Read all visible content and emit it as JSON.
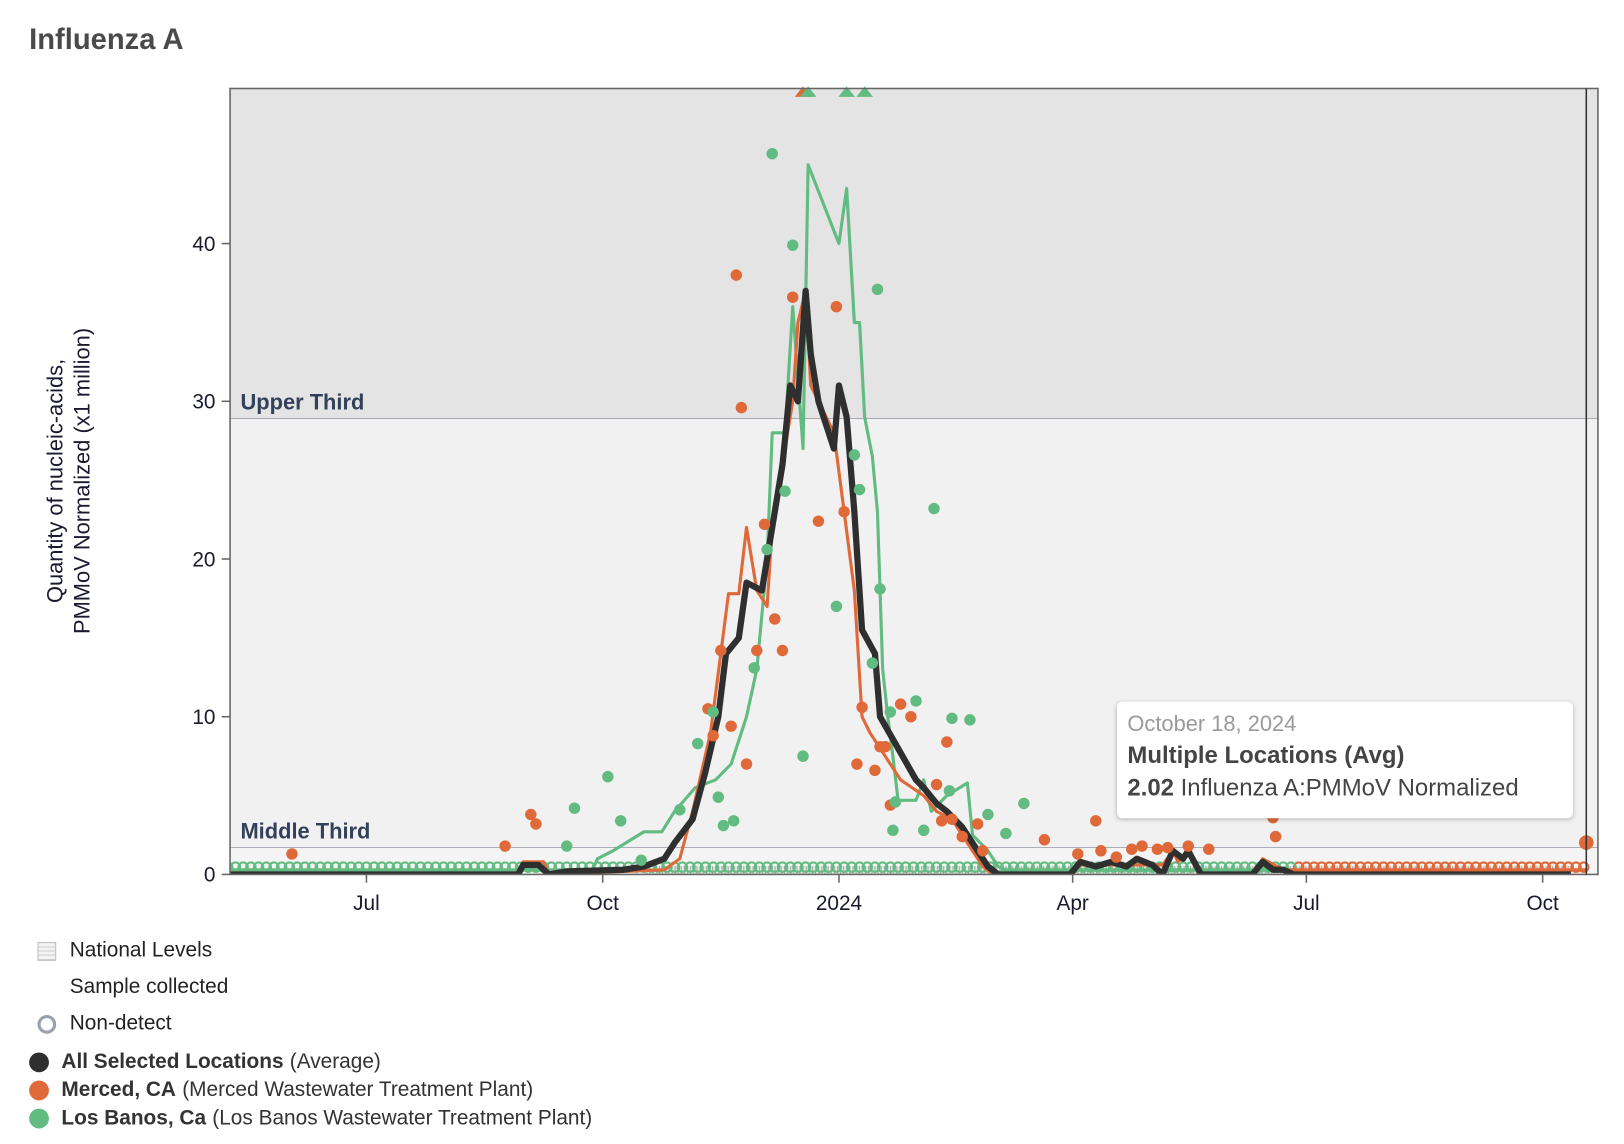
{
  "title": "Influenza A",
  "chart_data": {
    "type": "line",
    "title": "Influenza A",
    "ylabel_lines": [
      "Quantity of nucleic-acids,",
      "PMMoV Normalized (x1 million)"
    ],
    "xlabel": "",
    "x_range": [
      "2023-05-08",
      "2024-10-22"
    ],
    "ylim": [
      0,
      50
    ],
    "y_ticks": [
      0,
      10,
      20,
      30,
      40
    ],
    "x_ticks": [
      {
        "date": "2023-07-01",
        "label": "Jul"
      },
      {
        "date": "2023-10-01",
        "label": "Oct"
      },
      {
        "date": "2024-01-01",
        "label": "2024"
      },
      {
        "date": "2024-04-01",
        "label": "Apr"
      },
      {
        "date": "2024-07-01",
        "label": "Jul"
      },
      {
        "date": "2024-10-01",
        "label": "Oct"
      }
    ],
    "bands": [
      {
        "label": "Upper Third",
        "from": 28.9,
        "to": 50,
        "color": "#e4e4e4"
      },
      {
        "label": "Middle Third",
        "from": 1.7,
        "to": 28.9,
        "color": "#f1f1f1"
      }
    ],
    "national_levels": {
      "label": "National Levels",
      "from_date": "2023-10-17",
      "to_date": "2024-10-12",
      "max": 0.4
    },
    "cursor_date": "2024-10-18",
    "series": [
      {
        "name": "All Selected Locations",
        "detail": "(Average)",
        "color": "#2f2f2f",
        "points": [
          [
            "2023-05-08",
            0
          ],
          [
            "2023-08-29",
            0
          ],
          [
            "2023-08-31",
            0.6
          ],
          [
            "2023-09-06",
            0.6
          ],
          [
            "2023-09-10",
            0
          ],
          [
            "2023-09-17",
            0.2
          ],
          [
            "2023-10-09",
            0.3
          ],
          [
            "2023-10-17",
            0.5
          ],
          [
            "2023-10-25",
            1
          ],
          [
            "2023-10-29",
            2
          ],
          [
            "2023-11-05",
            3.5
          ],
          [
            "2023-11-10",
            6.5
          ],
          [
            "2023-11-15",
            10
          ],
          [
            "2023-11-18",
            14
          ],
          [
            "2023-11-23",
            15
          ],
          [
            "2023-11-26",
            18.5
          ],
          [
            "2023-12-02",
            18
          ],
          [
            "2023-12-06",
            22
          ],
          [
            "2023-12-10",
            26
          ],
          [
            "2023-12-13",
            31
          ],
          [
            "2023-12-16",
            30
          ],
          [
            "2023-12-19",
            37
          ],
          [
            "2023-12-21",
            33
          ],
          [
            "2023-12-24",
            30
          ],
          [
            "2023-12-30",
            27
          ],
          [
            "2024-01-01",
            31
          ],
          [
            "2024-01-04",
            29
          ],
          [
            "2024-01-07",
            23
          ],
          [
            "2024-01-10",
            15.5
          ],
          [
            "2024-01-15",
            14
          ],
          [
            "2024-01-17",
            10
          ],
          [
            "2024-01-24",
            8
          ],
          [
            "2024-01-31",
            6
          ],
          [
            "2024-02-03",
            5.5
          ],
          [
            "2024-02-08",
            4.5
          ],
          [
            "2024-02-12",
            4
          ],
          [
            "2024-02-18",
            3
          ],
          [
            "2024-02-22",
            2
          ],
          [
            "2024-02-28",
            0.5
          ],
          [
            "2024-03-03",
            0
          ],
          [
            "2024-03-31",
            0
          ],
          [
            "2024-04-04",
            0.8
          ],
          [
            "2024-04-10",
            0.5
          ],
          [
            "2024-04-16",
            0.8
          ],
          [
            "2024-04-22",
            0.5
          ],
          [
            "2024-04-26",
            1
          ],
          [
            "2024-05-02",
            0.6
          ],
          [
            "2024-05-06",
            0
          ],
          [
            "2024-05-10",
            1.5
          ],
          [
            "2024-05-14",
            1
          ],
          [
            "2024-05-16",
            1.5
          ],
          [
            "2024-05-21",
            0
          ],
          [
            "2024-06-10",
            0
          ],
          [
            "2024-06-14",
            0.8
          ],
          [
            "2024-06-18",
            0.3
          ],
          [
            "2024-06-22",
            0.3
          ],
          [
            "2024-06-26",
            0
          ],
          [
            "2024-10-12",
            0
          ]
        ]
      },
      {
        "name": "Merced, CA",
        "detail": "(Merced Wastewater Treatment Plant)",
        "color": "#e0693a",
        "points": [
          [
            "2023-05-08",
            0
          ],
          [
            "2023-08-29",
            0
          ],
          [
            "2023-08-31",
            0.8
          ],
          [
            "2023-09-08",
            0.8
          ],
          [
            "2023-09-10",
            0
          ],
          [
            "2023-10-25",
            0.3
          ],
          [
            "2023-10-31",
            1
          ],
          [
            "2023-11-05",
            4
          ],
          [
            "2023-11-12",
            9
          ],
          [
            "2023-11-16",
            14
          ],
          [
            "2023-11-19",
            17.8
          ],
          [
            "2023-11-23",
            17.8
          ],
          [
            "2023-11-26",
            22
          ],
          [
            "2023-11-30",
            18
          ],
          [
            "2023-12-04",
            17
          ],
          [
            "2023-12-06",
            22
          ],
          [
            "2023-12-10",
            26
          ],
          [
            "2023-12-14",
            30
          ],
          [
            "2023-12-16",
            35
          ],
          [
            "2023-12-19",
            37
          ],
          [
            "2023-12-21",
            31
          ],
          [
            "2023-12-30",
            28
          ],
          [
            "2024-01-03",
            23
          ],
          [
            "2024-01-07",
            18
          ],
          [
            "2024-01-10",
            10
          ],
          [
            "2024-01-13",
            9
          ],
          [
            "2024-01-17",
            8
          ],
          [
            "2024-01-25",
            6
          ],
          [
            "2024-02-03",
            5
          ],
          [
            "2024-02-08",
            4
          ],
          [
            "2024-02-14",
            3.5
          ],
          [
            "2024-02-18",
            2.5
          ],
          [
            "2024-02-22",
            1.5
          ],
          [
            "2024-02-26",
            0.5
          ],
          [
            "2024-03-01",
            0
          ],
          [
            "2024-03-31",
            0
          ],
          [
            "2024-04-04",
            0.6
          ],
          [
            "2024-05-06",
            0.6
          ],
          [
            "2024-05-10",
            1.5
          ],
          [
            "2024-05-12",
            0.8
          ],
          [
            "2024-05-16",
            1.5
          ],
          [
            "2024-05-21",
            0
          ],
          [
            "2024-06-10",
            0
          ],
          [
            "2024-06-14",
            1
          ],
          [
            "2024-06-22",
            0.3
          ],
          [
            "2024-10-18",
            0.3
          ]
        ],
        "samples": [
          [
            "2023-06-02",
            1.3
          ],
          [
            "2023-08-24",
            1.8
          ],
          [
            "2023-09-03",
            3.8
          ],
          [
            "2023-09-05",
            3.2
          ],
          [
            "2023-11-11",
            10.5
          ],
          [
            "2023-11-13",
            8.8
          ],
          [
            "2023-11-16",
            14.2
          ],
          [
            "2023-11-20",
            9.4
          ],
          [
            "2023-11-22",
            38
          ],
          [
            "2023-11-24",
            29.6
          ],
          [
            "2023-11-26",
            7
          ],
          [
            "2023-11-30",
            14.2
          ],
          [
            "2023-12-03",
            22.2
          ],
          [
            "2023-12-07",
            16.2
          ],
          [
            "2023-12-10",
            14.2
          ],
          [
            "2023-12-14",
            36.6
          ],
          [
            "2023-12-24",
            22.4
          ],
          [
            "2023-12-31",
            36
          ],
          [
            "2024-01-03",
            23
          ],
          [
            "2024-01-08",
            7
          ],
          [
            "2024-01-10",
            10.6
          ],
          [
            "2024-01-15",
            6.6
          ],
          [
            "2024-01-17",
            8.1
          ],
          [
            "2024-01-19",
            8.1
          ],
          [
            "2024-01-21",
            4.4
          ],
          [
            "2024-01-25",
            10.8
          ],
          [
            "2024-01-29",
            10
          ],
          [
            "2024-02-12",
            8.4
          ],
          [
            "2024-02-08",
            5.7
          ],
          [
            "2024-02-10",
            3.4
          ],
          [
            "2024-02-14",
            3.5
          ],
          [
            "2024-02-18",
            2.4
          ],
          [
            "2024-02-24",
            3.2
          ],
          [
            "2024-02-26",
            1.5
          ],
          [
            "2024-03-21",
            2.2
          ],
          [
            "2024-04-03",
            1.3
          ],
          [
            "2024-04-10",
            3.4
          ],
          [
            "2024-04-12",
            1.5
          ],
          [
            "2024-04-18",
            1.1
          ],
          [
            "2024-04-24",
            1.6
          ],
          [
            "2024-04-28",
            1.8
          ],
          [
            "2024-05-04",
            1.6
          ],
          [
            "2024-05-08",
            1.7
          ],
          [
            "2024-05-16",
            1.8
          ],
          [
            "2024-05-24",
            1.6
          ],
          [
            "2024-06-18",
            3.6
          ],
          [
            "2024-06-19",
            2.4
          ],
          [
            "2024-10-18",
            2.02
          ]
        ],
        "non_detects": {
          "from": "2024-06-28",
          "to": "2024-10-18",
          "every_days": 3
        },
        "off_scale": [
          "2023-12-18"
        ]
      },
      {
        "name": "Los Banos, Ca",
        "detail": "(Los Banos Wastewater Treatment Plant)",
        "color": "#62bb80",
        "points": [
          [
            "2023-05-08",
            0.3
          ],
          [
            "2023-09-27",
            0.3
          ],
          [
            "2023-09-29",
            1
          ],
          [
            "2023-10-05",
            1.5
          ],
          [
            "2023-10-17",
            2.7
          ],
          [
            "2023-10-24",
            2.7
          ],
          [
            "2023-10-29",
            4
          ],
          [
            "2023-11-06",
            5.5
          ],
          [
            "2023-11-14",
            6
          ],
          [
            "2023-11-20",
            7
          ],
          [
            "2023-11-26",
            10
          ],
          [
            "2023-11-30",
            13
          ],
          [
            "2023-12-04",
            20
          ],
          [
            "2023-12-06",
            28
          ],
          [
            "2023-12-11",
            28
          ],
          [
            "2023-12-14",
            36
          ],
          [
            "2023-12-18",
            27
          ],
          [
            "2023-12-20",
            45
          ],
          [
            "2024-01-01",
            40
          ],
          [
            "2024-01-04",
            43.5
          ],
          [
            "2024-01-07",
            35
          ],
          [
            "2024-01-09",
            35
          ],
          [
            "2024-01-11",
            29
          ],
          [
            "2024-01-14",
            26.5
          ],
          [
            "2024-01-16",
            23
          ],
          [
            "2024-01-18",
            13
          ],
          [
            "2024-01-20",
            10
          ],
          [
            "2024-01-22",
            7.5
          ],
          [
            "2024-01-24",
            4.7
          ],
          [
            "2024-01-31",
            4.7
          ],
          [
            "2024-02-03",
            6
          ],
          [
            "2024-02-06",
            4
          ],
          [
            "2024-02-12",
            5
          ],
          [
            "2024-02-20",
            5.8
          ],
          [
            "2024-02-22",
            2.5
          ],
          [
            "2024-02-28",
            1.5
          ],
          [
            "2024-03-03",
            0.5
          ],
          [
            "2024-03-06",
            0.3
          ],
          [
            "2024-06-26",
            0.3
          ]
        ],
        "samples": [
          [
            "2023-09-17",
            1.8
          ],
          [
            "2023-09-20",
            4.2
          ],
          [
            "2023-10-03",
            6.2
          ],
          [
            "2023-10-08",
            3.4
          ],
          [
            "2023-10-16",
            0.9
          ],
          [
            "2023-10-31",
            4.1
          ],
          [
            "2023-11-07",
            8.3
          ],
          [
            "2023-11-13",
            10.3
          ],
          [
            "2023-11-15",
            4.9
          ],
          [
            "2023-11-17",
            3.1
          ],
          [
            "2023-11-21",
            3.4
          ],
          [
            "2023-11-29",
            13.1
          ],
          [
            "2023-12-04",
            20.6
          ],
          [
            "2023-12-06",
            45.7
          ],
          [
            "2023-12-11",
            24.3
          ],
          [
            "2023-12-14",
            39.9
          ],
          [
            "2023-12-18",
            7.5
          ],
          [
            "2023-12-31",
            17
          ],
          [
            "2024-01-07",
            26.6
          ],
          [
            "2024-01-09",
            24.4
          ],
          [
            "2024-01-16",
            37.1
          ],
          [
            "2024-01-14",
            13.4
          ],
          [
            "2024-01-17",
            18.1
          ],
          [
            "2024-01-21",
            10.3
          ],
          [
            "2024-01-23",
            4.6
          ],
          [
            "2024-01-22",
            2.8
          ],
          [
            "2024-01-31",
            11
          ],
          [
            "2024-02-07",
            23.2
          ],
          [
            "2024-02-14",
            9.9
          ],
          [
            "2024-02-21",
            9.8
          ],
          [
            "2024-02-03",
            2.8
          ],
          [
            "2024-02-13",
            5.3
          ],
          [
            "2024-02-28",
            3.8
          ],
          [
            "2024-03-06",
            2.6
          ],
          [
            "2024-03-13",
            4.5
          ]
        ],
        "non_detects": {
          "from": "2023-05-08",
          "to": "2024-06-26",
          "every_days": 3
        },
        "off_scale": [
          "2023-12-20",
          "2024-01-04",
          "2024-01-11"
        ]
      }
    ],
    "legend_markers": [
      "National Levels",
      "Sample collected",
      "Non-detect"
    ]
  },
  "tooltip": {
    "date": "October 18, 2024",
    "title": "Multiple Locations (Avg)",
    "value": "2.02",
    "metric": "Influenza A:PMMoV Normalized"
  }
}
